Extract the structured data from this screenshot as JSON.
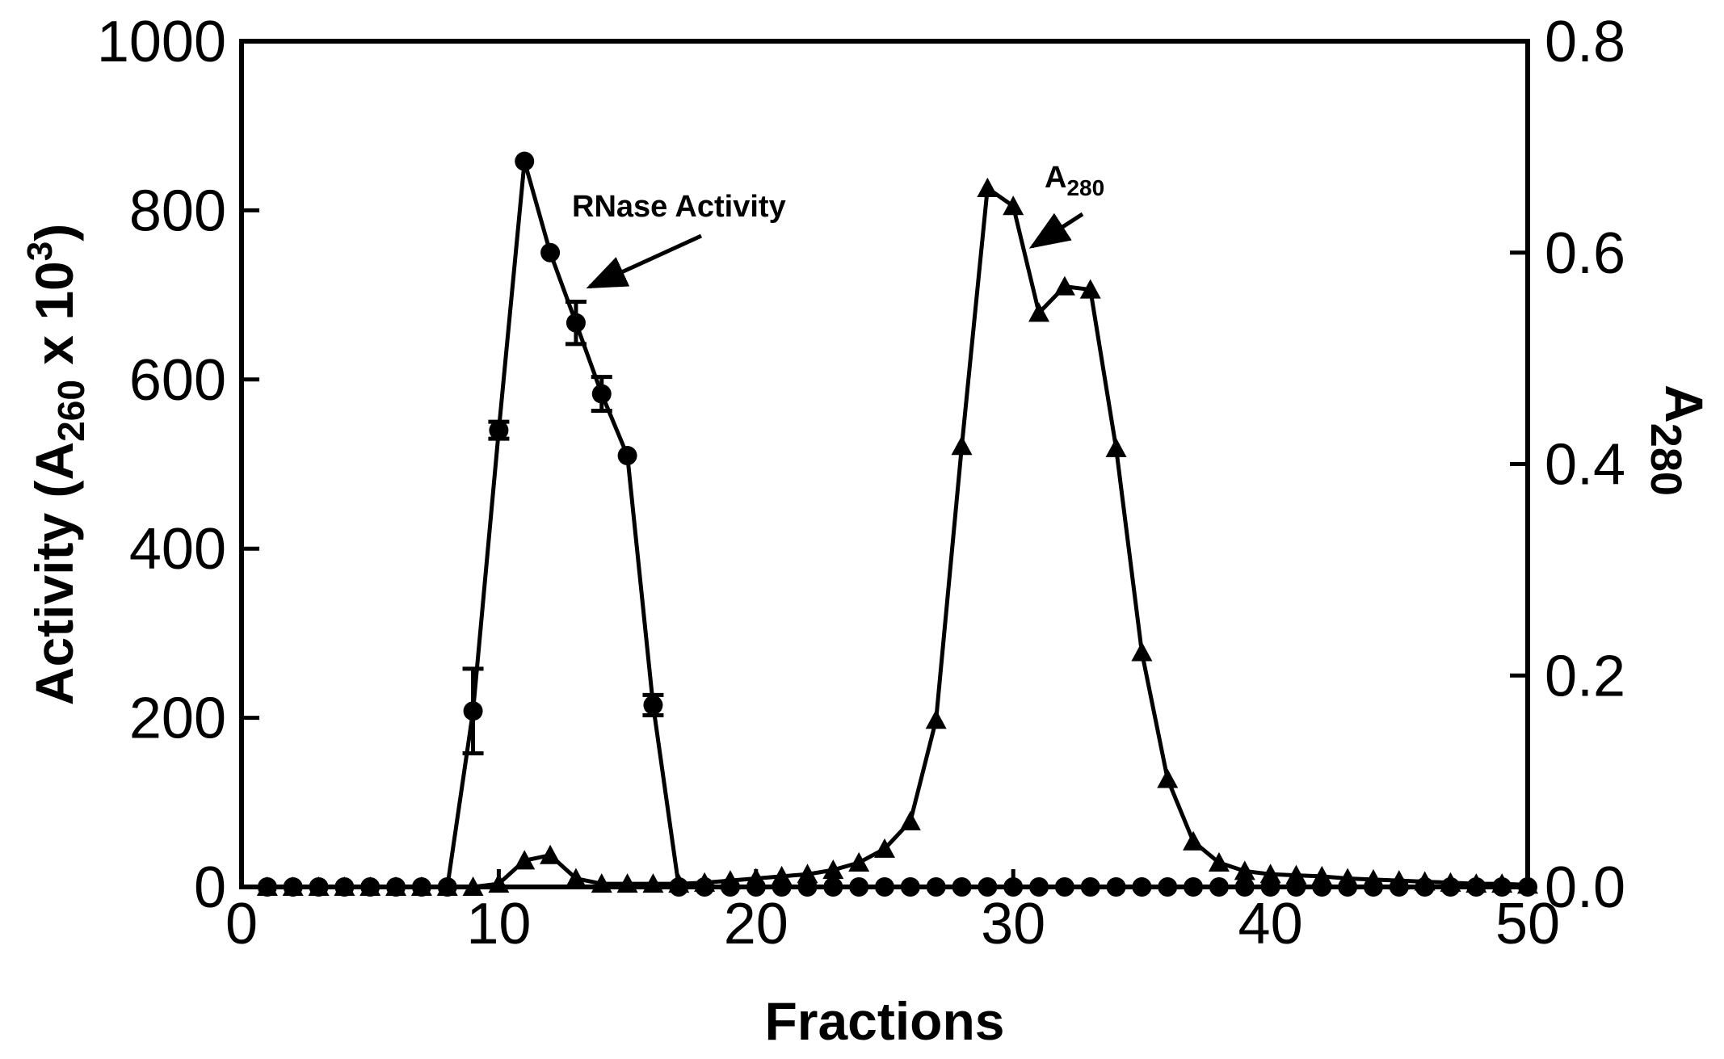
{
  "chart_data": {
    "type": "line",
    "xlabel": "Fractions",
    "ylabel_left": {
      "main": "Activity (A",
      "sub": "260",
      "mid": " x 10",
      "sup": "3",
      "end": ")"
    },
    "ylabel_right": {
      "main": "A",
      "sub": "280"
    },
    "xlim": [
      0,
      50
    ],
    "ylim_left": [
      0,
      1000
    ],
    "ylim_right": [
      0,
      0.8
    ],
    "x_ticks": [
      0,
      10,
      20,
      30,
      40,
      50
    ],
    "y_left_ticks": [
      0,
      200,
      400,
      600,
      800,
      1000
    ],
    "y_right_ticks": [
      "0.0",
      "0.2",
      "0.4",
      "0.6",
      "0.8"
    ],
    "grid": false,
    "legend": "none",
    "series": [
      {
        "name": "RNase Activity",
        "axis": "left",
        "marker": "circle",
        "x": [
          1,
          2,
          3,
          4,
          5,
          6,
          7,
          8,
          9,
          10,
          11,
          12,
          13,
          14,
          15,
          16,
          17,
          18,
          19,
          20,
          21,
          22,
          23,
          24,
          25,
          26,
          27,
          28,
          29,
          30,
          31,
          32,
          33,
          34,
          35,
          36,
          37,
          38,
          39,
          40,
          41,
          42,
          43,
          44,
          45,
          46,
          47,
          48,
          49,
          50
        ],
        "y": [
          0,
          0,
          0,
          0,
          0,
          0,
          0,
          0,
          208,
          540,
          858,
          750,
          667,
          583,
          510,
          215,
          0,
          0,
          0,
          0,
          0,
          0,
          0,
          0,
          0,
          0,
          0,
          0,
          0,
          0,
          0,
          0,
          0,
          0,
          0,
          0,
          0,
          0,
          0,
          0,
          0,
          0,
          0,
          0,
          0,
          0,
          0,
          0,
          0,
          0
        ],
        "error": [
          0,
          0,
          0,
          0,
          0,
          0,
          0,
          0,
          50,
          10,
          0,
          0,
          25,
          20,
          0,
          12,
          0,
          0,
          0,
          0,
          0,
          0,
          0,
          0,
          0,
          0,
          0,
          0,
          0,
          0,
          0,
          0,
          0,
          0,
          0,
          0,
          0,
          0,
          0,
          0,
          0,
          0,
          0,
          0,
          0,
          0,
          0,
          0,
          0,
          0
        ]
      },
      {
        "name": "A280",
        "axis": "right",
        "marker": "triangle",
        "x": [
          1,
          2,
          3,
          4,
          5,
          6,
          7,
          8,
          9,
          10,
          11,
          12,
          13,
          14,
          15,
          16,
          17,
          18,
          19,
          20,
          21,
          22,
          23,
          24,
          25,
          26,
          27,
          28,
          29,
          30,
          31,
          32,
          33,
          34,
          35,
          36,
          37,
          38,
          39,
          40,
          41,
          42,
          43,
          44,
          45,
          46,
          47,
          48,
          49,
          50
        ],
        "y": [
          0,
          0,
          0,
          0,
          0,
          0,
          0,
          0,
          0,
          0.003,
          0.025,
          0.03,
          0.008,
          0.003,
          0.003,
          0.003,
          0.003,
          0.004,
          0.006,
          0.008,
          0.01,
          0.012,
          0.016,
          0.023,
          0.036,
          0.062,
          0.158,
          0.417,
          0.661,
          0.644,
          0.543,
          0.568,
          0.565,
          0.415,
          0.222,
          0.102,
          0.043,
          0.023,
          0.015,
          0.012,
          0.011,
          0.01,
          0.008,
          0.007,
          0.006,
          0.005,
          0.004,
          0.003,
          0.003,
          0.002
        ]
      }
    ],
    "annotations": [
      {
        "text": "RNase Activity",
        "points_to_series": "RNase Activity"
      },
      {
        "text_main": "A",
        "text_sub": "280",
        "points_to_series": "A280"
      }
    ]
  }
}
